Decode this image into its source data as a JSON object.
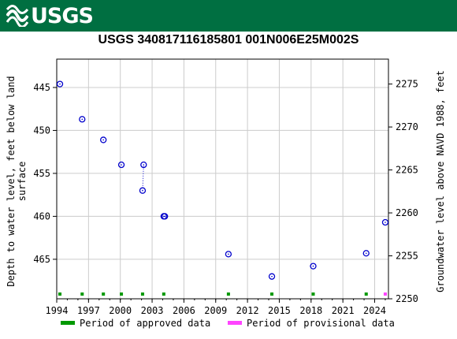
{
  "header": {
    "logo_text": "USGS"
  },
  "chart_data": {
    "type": "scatter",
    "title": "USGS 340817116185801 001N006E25M002S",
    "ylabel_left": "Depth to water level, feet below land surface",
    "ylabel_right": "Groundwater level above NAVD 1988, feet",
    "xlim": [
      1994,
      2025.3
    ],
    "ylim_left": [
      469.6,
      441.7
    ],
    "ylim_right": [
      2250,
      2277.9
    ],
    "x_ticks": [
      1994,
      1997,
      2000,
      2003,
      2006,
      2009,
      2012,
      2015,
      2018,
      2021,
      2024
    ],
    "y_ticks_left": [
      445,
      450,
      455,
      460,
      465
    ],
    "y_ticks_right": [
      2250,
      2255,
      2260,
      2265,
      2270,
      2275
    ],
    "series": [
      {
        "name": "Depth to water level",
        "color": "#0000cc",
        "points": [
          {
            "x": 1994.3,
            "y": 444.6
          },
          {
            "x": 1996.4,
            "y": 448.7
          },
          {
            "x": 1998.4,
            "y": 451.1
          },
          {
            "x": 2000.1,
            "y": 454.0
          },
          {
            "x": 2002.1,
            "y": 457.0
          },
          {
            "x": 2002.2,
            "y": 454.0
          },
          {
            "x": 2004.1,
            "y": 460.0
          },
          {
            "x": 2004.2,
            "y": 460.0
          },
          {
            "x": 2010.2,
            "y": 464.4
          },
          {
            "x": 2014.3,
            "y": 467.0
          },
          {
            "x": 2018.2,
            "y": 465.8
          },
          {
            "x": 2023.2,
            "y": 464.3
          },
          {
            "x": 2025.0,
            "y": 460.7
          }
        ],
        "dotted_link": [
          [
            2002.1,
            457.0
          ],
          [
            2002.2,
            454.0
          ]
        ]
      }
    ],
    "approved_periods": [
      1994.3,
      1996.4,
      1998.4,
      2000.1,
      2002.1,
      2004.1,
      2010.2,
      2014.3,
      2018.2,
      2023.2
    ],
    "provisional_periods": [
      2025.0
    ],
    "legend": {
      "position": "bottom",
      "items": [
        {
          "label": "Period of approved data",
          "color": "#009900"
        },
        {
          "label": "Period of provisional data",
          "color": "#ff44ff"
        }
      ]
    },
    "grid": true
  }
}
